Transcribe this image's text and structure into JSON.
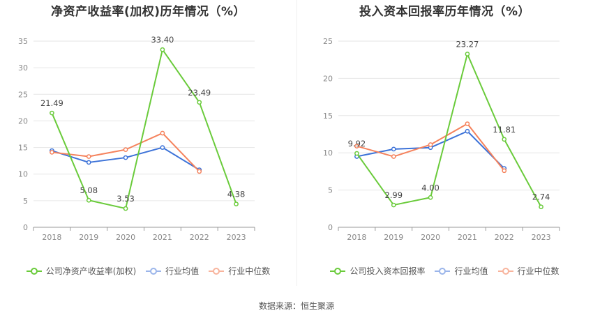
{
  "footer": "数据来源：恒生聚源",
  "colors": {
    "company": "#6acb3b",
    "avg": "#3c72d8",
    "median": "#f5825c"
  },
  "charts": [
    {
      "title": "净资产收益率(加权)历年情况（%）",
      "legend": [
        "公司净资产收益率(加权)",
        "行业均值",
        "行业中位数"
      ]
    },
    {
      "title": "投入资本回报率历年情况（%）",
      "legend": [
        "公司投入资本回报率",
        "行业均值",
        "行业中位数"
      ]
    }
  ],
  "chart_data": [
    {
      "type": "line",
      "title": "净资产收益率(加权)历年情况（%）",
      "x": [
        "2018",
        "2019",
        "2020",
        "2021",
        "2022",
        "2023"
      ],
      "ylim": [
        0,
        35
      ],
      "yticks": [
        0,
        5,
        10,
        15,
        20,
        25,
        30,
        35
      ],
      "grid": true,
      "legend_position": "bottom",
      "series": [
        {
          "name": "公司净资产收益率(加权)",
          "values": [
            21.49,
            5.08,
            3.53,
            33.4,
            23.49,
            4.38
          ],
          "labels": [
            "21.49",
            "5.08",
            "3.53",
            "33.40",
            "23.49",
            "4.38"
          ],
          "color": "#6acb3b"
        },
        {
          "name": "行业均值",
          "values": [
            14.4,
            12.2,
            13.1,
            15.0,
            10.8,
            null
          ],
          "color": "#3c72d8"
        },
        {
          "name": "行业中位数",
          "values": [
            14.1,
            13.3,
            14.6,
            17.7,
            10.5,
            null
          ],
          "color": "#f5825c"
        }
      ]
    },
    {
      "type": "line",
      "title": "投入资本回报率历年情况（%）",
      "x": [
        "2018",
        "2019",
        "2020",
        "2021",
        "2022",
        "2023"
      ],
      "ylim": [
        0,
        25
      ],
      "yticks": [
        0,
        5,
        10,
        15,
        20,
        25
      ],
      "grid": true,
      "legend_position": "bottom",
      "series": [
        {
          "name": "公司投入资本回报率",
          "values": [
            9.92,
            2.99,
            4.0,
            23.27,
            11.81,
            2.74
          ],
          "labels": [
            "9.92",
            "2.99",
            "4.00",
            "23.27",
            "11.81",
            "2.74"
          ],
          "color": "#6acb3b"
        },
        {
          "name": "行业均值",
          "values": [
            9.5,
            10.5,
            10.7,
            12.9,
            7.9,
            null
          ],
          "color": "#3c72d8"
        },
        {
          "name": "行业中位数",
          "values": [
            10.9,
            9.5,
            11.1,
            13.9,
            7.6,
            null
          ],
          "color": "#f5825c"
        }
      ]
    }
  ]
}
